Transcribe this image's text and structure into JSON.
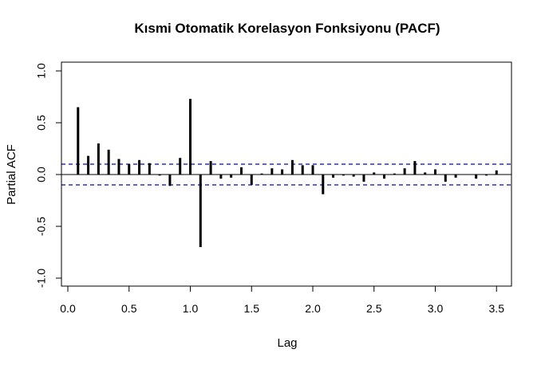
{
  "chart_data": {
    "type": "bar",
    "title": "Kısmi Otomatik Korelasyon Fonksiyonu (PACF)",
    "xlabel": "Lag",
    "ylabel": "Partial ACF",
    "xlim": [
      0,
      3.5
    ],
    "ylim": [
      -1,
      1
    ],
    "xticks": [
      0.0,
      0.5,
      1.0,
      1.5,
      2.0,
      2.5,
      3.0,
      3.5
    ],
    "xtick_labels": [
      "0.0",
      "0.5",
      "1.0",
      "1.5",
      "2.0",
      "2.5",
      "3.0",
      "3.5"
    ],
    "yticks": [
      -1.0,
      -0.5,
      0.0,
      0.5,
      1.0
    ],
    "ytick_labels": [
      "-1.0",
      "-0.5",
      "0.0",
      "0.5",
      "1.0"
    ],
    "confidence_limit": 0.1,
    "colors": {
      "bars": "#000000",
      "confidence": "#0000CD",
      "zero": "#000000"
    },
    "x": [
      0.0833,
      0.1667,
      0.25,
      0.3333,
      0.4167,
      0.5,
      0.5833,
      0.6667,
      0.75,
      0.8333,
      0.9167,
      1.0,
      1.0833,
      1.1667,
      1.25,
      1.3333,
      1.4167,
      1.5,
      1.5833,
      1.6667,
      1.75,
      1.8333,
      1.9167,
      2.0,
      2.0833,
      2.1667,
      2.25,
      2.3333,
      2.4167,
      2.5,
      2.5833,
      2.6667,
      2.75,
      2.8333,
      2.9167,
      3.0,
      3.0833,
      3.1667,
      3.25,
      3.3333,
      3.4167,
      3.5
    ],
    "values": [
      0.65,
      0.18,
      0.3,
      0.24,
      0.15,
      0.1,
      0.14,
      0.11,
      -0.01,
      -0.11,
      0.16,
      0.73,
      -0.7,
      0.13,
      -0.04,
      -0.03,
      0.07,
      -0.1,
      0.01,
      0.06,
      0.05,
      0.14,
      0.09,
      0.09,
      -0.19,
      -0.03,
      -0.01,
      -0.02,
      -0.07,
      0.02,
      -0.04,
      0.01,
      0.06,
      0.13,
      0.02,
      0.05,
      -0.07,
      -0.03,
      0.0,
      -0.04,
      -0.01,
      0.04
    ]
  }
}
